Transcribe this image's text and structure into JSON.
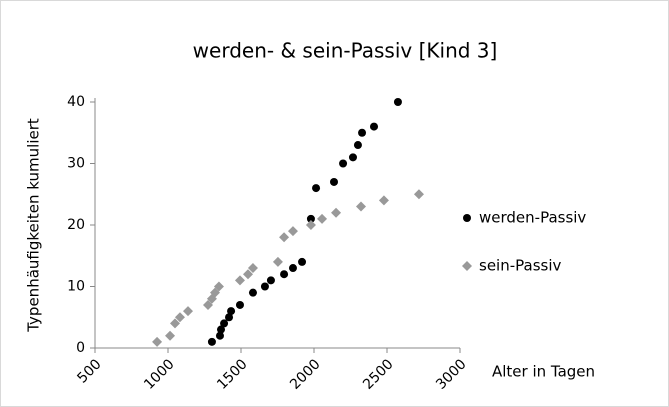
{
  "chart_data": {
    "type": "scatter",
    "title": "werden- & sein-Passiv [Kind 3]",
    "x_label": "Alter in Tagen",
    "y_label": "Typenhäufigkeiten kumuliert",
    "xlim": [
      500,
      3000
    ],
    "xticks": [
      500,
      1000,
      1500,
      2000,
      2500,
      3000
    ],
    "ylim": [
      0,
      40
    ],
    "yticks": [
      0,
      10,
      20,
      30,
      40
    ],
    "grid": false,
    "legend": "right",
    "series": [
      {
        "name": "werden-Passiv",
        "color": "#000000",
        "marker": "circle",
        "x": [
          1301,
          1356,
          1363,
          1384,
          1418,
          1432,
          1493,
          1582,
          1664,
          1705,
          1795,
          1856,
          1918,
          1979,
          2014,
          2137,
          2199,
          2267,
          2301,
          2329,
          2411,
          2575
        ],
        "values": [
          1,
          2,
          3,
          4,
          5,
          6,
          7,
          9,
          10,
          11,
          12,
          13,
          14,
          21,
          26,
          27,
          30,
          31,
          33,
          35,
          36,
          40
        ]
      },
      {
        "name": "sein-Passiv",
        "color": "#999999",
        "marker": "diamond",
        "x": [
          925,
          1014,
          1048,
          1082,
          1137,
          1274,
          1301,
          1322,
          1349,
          1493,
          1548,
          1582,
          1753,
          1795,
          1856,
          1979,
          2055,
          2151,
          2322,
          2479,
          2719
        ],
        "values": [
          1,
          2,
          4,
          5,
          6,
          7,
          8,
          9,
          10,
          11,
          12,
          13,
          14,
          18,
          19,
          20,
          21,
          22,
          23,
          24,
          25
        ]
      }
    ]
  }
}
